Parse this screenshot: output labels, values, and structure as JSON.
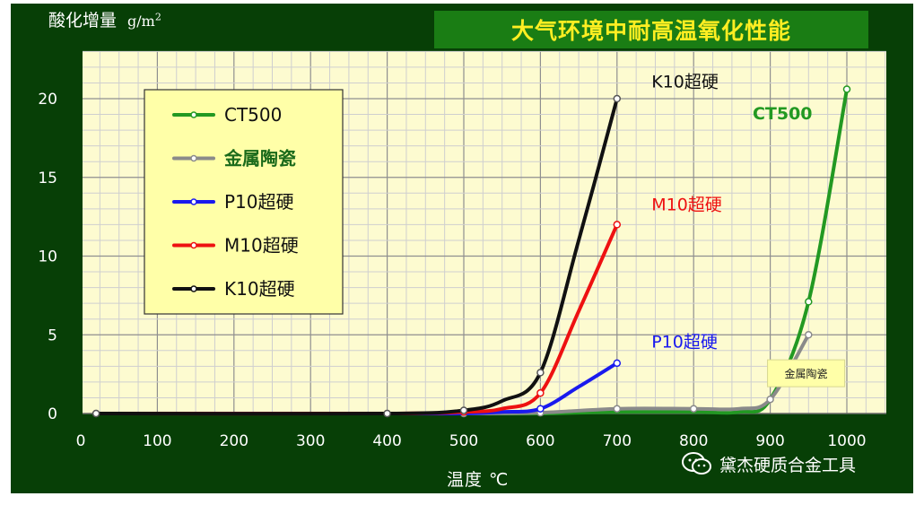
{
  "title": "大气环境中耐高温氧化性能",
  "ylabel": "酸化增量",
  "yunit": "g/m",
  "yunit_sup": "2",
  "xlabel": "温度 ℃",
  "watermark": "黛杰硬质合金工具",
  "watermark_icon": "wechat-icon",
  "colors": {
    "frame": "#073f06",
    "plot_bg": "#fdfbd0",
    "grid": "#c9c9c9",
    "title_bg": "#1a7d14",
    "title_text": "#ffee22",
    "legend_bg": "#ffffa8"
  },
  "chart_data": {
    "type": "line",
    "title": "大气环境中耐高温氧化性能",
    "xlabel": "温度 ℃",
    "ylabel": "酸化增量 g/m²",
    "xlim": [
      0,
      1050
    ],
    "ylim": [
      0,
      23
    ],
    "xticks": [
      0,
      100,
      200,
      300,
      400,
      500,
      600,
      700,
      800,
      900,
      1000
    ],
    "yticks": [
      0,
      5,
      10,
      15,
      20
    ],
    "grid": true,
    "legend_position": "top-left",
    "series": [
      {
        "name": "CT500",
        "color": "#229922",
        "points": [
          [
            20,
            0
          ],
          [
            400,
            0
          ],
          [
            500,
            0
          ],
          [
            600,
            0
          ],
          [
            700,
            0.1
          ],
          [
            800,
            0.1
          ],
          [
            860,
            0.1
          ],
          [
            900,
            0.9
          ],
          [
            950,
            7.1
          ],
          [
            1000,
            20.6
          ]
        ],
        "markers": [
          [
            950,
            7.1
          ],
          [
            1000,
            20.6
          ]
        ],
        "label": "CT500",
        "label_pos": [
          877,
          18.7
        ]
      },
      {
        "name": "金属陶瓷",
        "color": "#8a8a8a",
        "points": [
          [
            20,
            0
          ],
          [
            400,
            0
          ],
          [
            500,
            0
          ],
          [
            600,
            0.05
          ],
          [
            700,
            0.3
          ],
          [
            800,
            0.3
          ],
          [
            860,
            0.3
          ],
          [
            900,
            0.9
          ],
          [
            950,
            5.0
          ]
        ],
        "markers": [
          [
            20,
            0
          ],
          [
            400,
            0
          ],
          [
            500,
            0
          ],
          [
            600,
            0.05
          ],
          [
            700,
            0.3
          ],
          [
            800,
            0.3
          ],
          [
            900,
            0.9
          ],
          [
            950,
            5.0
          ]
        ],
        "label": "金属陶瓷",
        "label_pos": [
          955,
          2.5
        ],
        "label_boxed": true
      },
      {
        "name": "P10超硬",
        "color": "#1a1aee",
        "points": [
          [
            20,
            0
          ],
          [
            400,
            0
          ],
          [
            500,
            0
          ],
          [
            550,
            0.1
          ],
          [
            600,
            0.3
          ],
          [
            650,
            1.7
          ],
          [
            700,
            3.2
          ]
        ],
        "markers": [
          [
            600,
            0.3
          ],
          [
            700,
            3.2
          ]
        ],
        "label": "P10超硬",
        "label_pos": [
          745,
          4.2
        ]
      },
      {
        "name": "M10超硬",
        "color": "#ee1111",
        "points": [
          [
            20,
            0
          ],
          [
            400,
            0
          ],
          [
            500,
            0.1
          ],
          [
            550,
            0.3
          ],
          [
            600,
            1.3
          ],
          [
            650,
            6.5
          ],
          [
            700,
            12.0
          ]
        ],
        "markers": [
          [
            500,
            0.1
          ],
          [
            600,
            1.3
          ],
          [
            700,
            12.0
          ]
        ],
        "label": "M10超硬",
        "label_pos": [
          745,
          12.9
        ]
      },
      {
        "name": "K10超硬",
        "color": "#111111",
        "points": [
          [
            20,
            0
          ],
          [
            400,
            0
          ],
          [
            500,
            0.2
          ],
          [
            550,
            0.8
          ],
          [
            600,
            2.6
          ],
          [
            650,
            11.0
          ],
          [
            700,
            20.0
          ]
        ],
        "markers": [
          [
            20,
            0
          ],
          [
            400,
            0
          ],
          [
            500,
            0.2
          ],
          [
            600,
            2.6
          ],
          [
            700,
            20.0
          ]
        ],
        "label": "K10超硬",
        "label_pos": [
          745,
          20.7
        ]
      }
    ]
  }
}
